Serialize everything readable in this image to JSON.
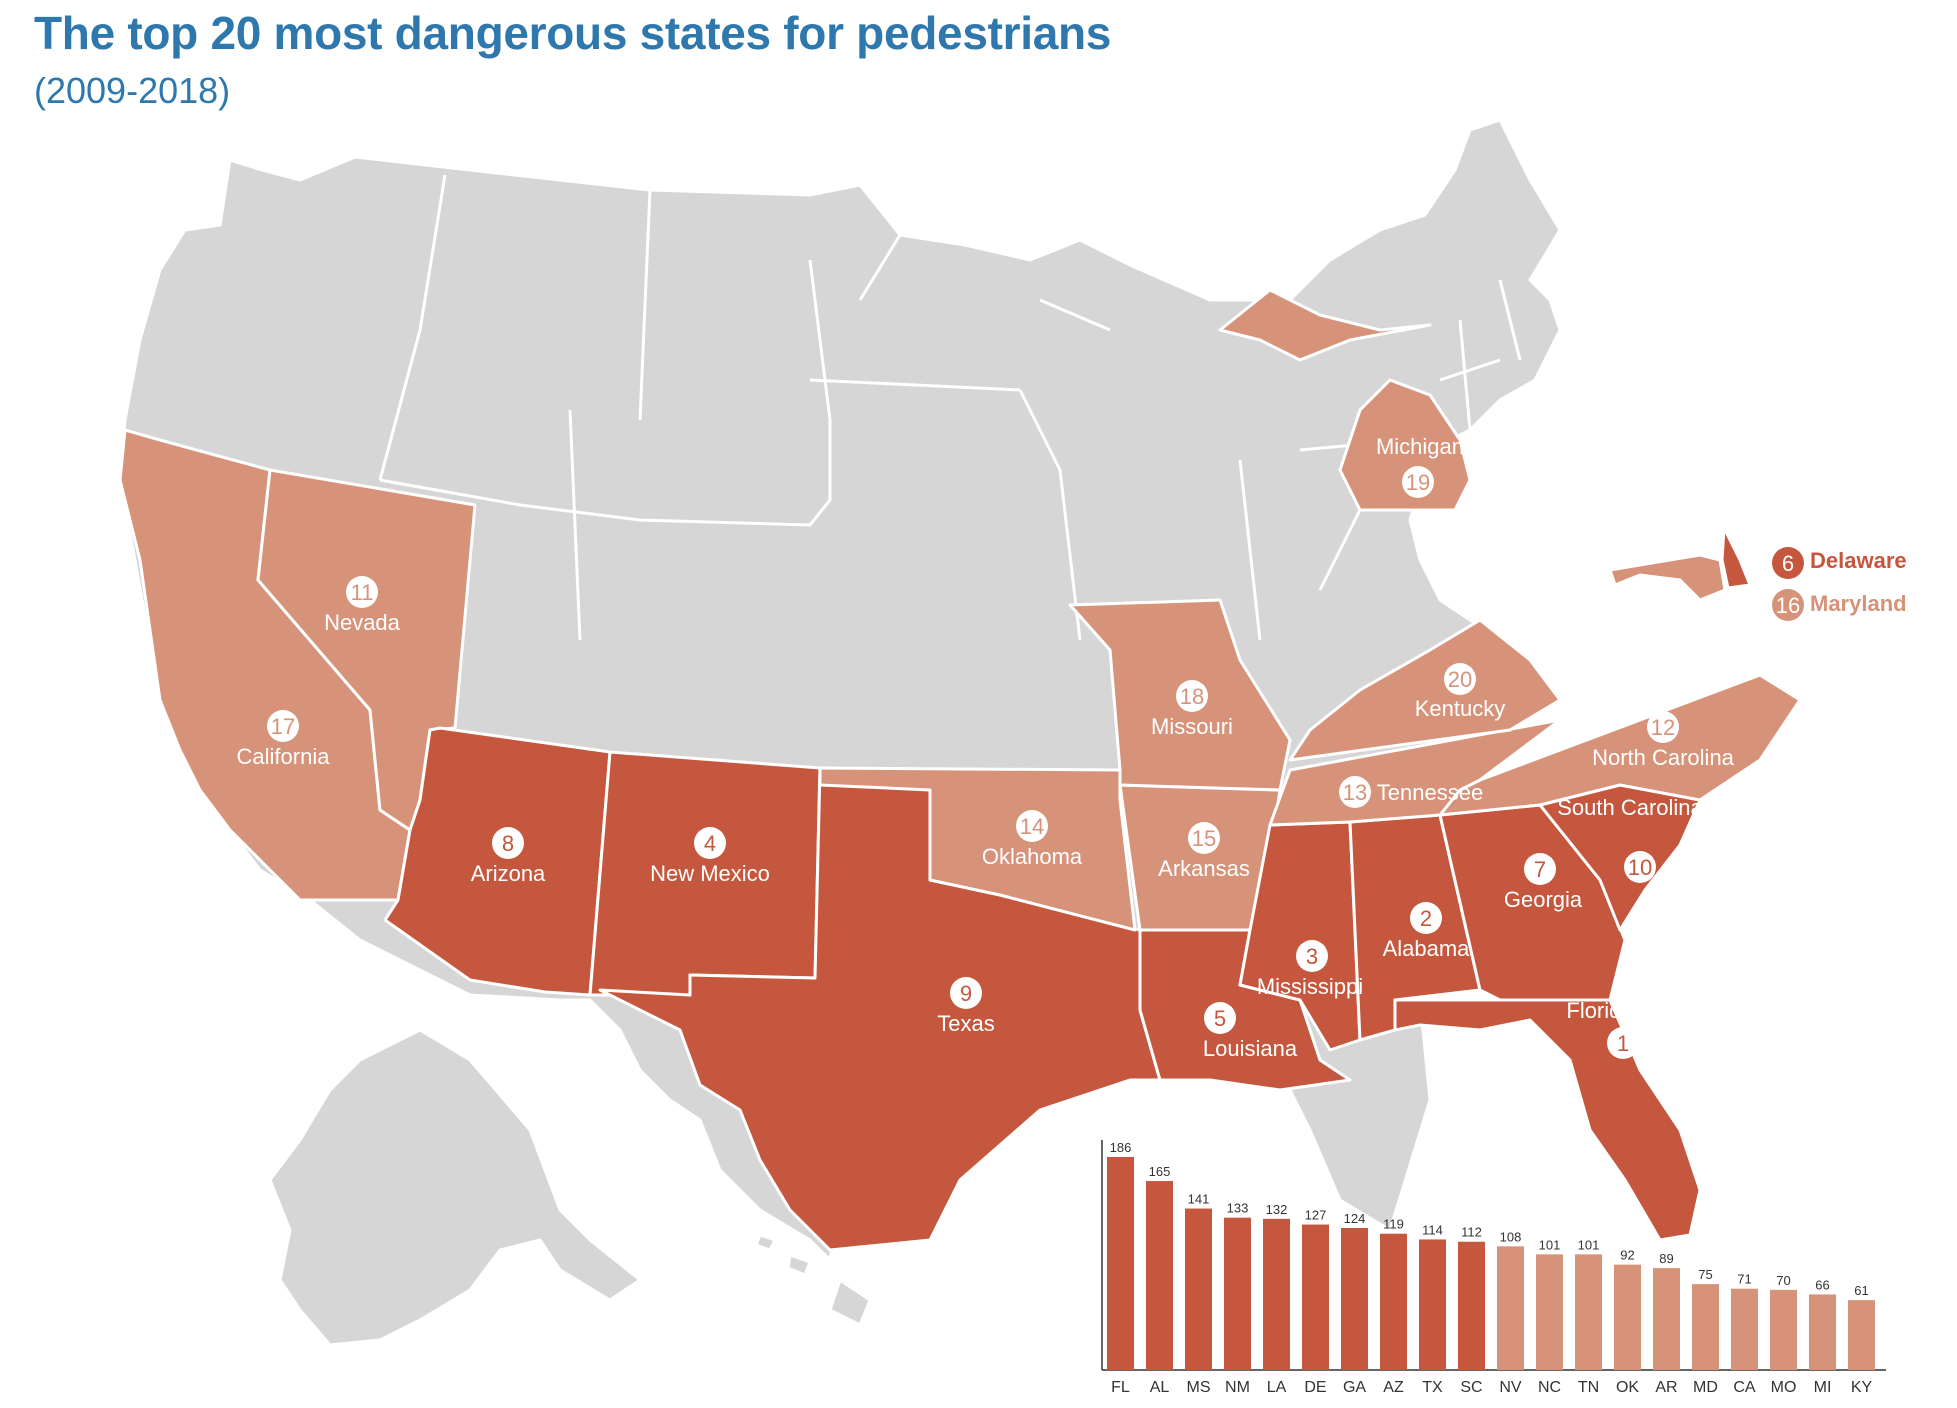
{
  "title": "The top 20 most dangerous states for pedestrians",
  "subtitle": "(2009-2018)",
  "colors": {
    "top_tier": "#c4573d",
    "second_tier": "#d6937a",
    "other": "#d6d6d6",
    "circle_fill": "#ffffff",
    "label_text": "#ffffff"
  },
  "states": [
    {
      "name": "Florida",
      "rank": "1",
      "tier": "top"
    },
    {
      "name": "Alabama",
      "rank": "2",
      "tier": "top"
    },
    {
      "name": "Mississippi",
      "rank": "3",
      "tier": "top"
    },
    {
      "name": "New Mexico",
      "rank": "4",
      "tier": "top"
    },
    {
      "name": "Louisiana",
      "rank": "5",
      "tier": "top"
    },
    {
      "name": "Delaware",
      "rank": "6",
      "tier": "top"
    },
    {
      "name": "Georgia",
      "rank": "7",
      "tier": "top"
    },
    {
      "name": "Arizona",
      "rank": "8",
      "tier": "top"
    },
    {
      "name": "Texas",
      "rank": "9",
      "tier": "top"
    },
    {
      "name": "South Carolina",
      "rank": "10",
      "tier": "top"
    },
    {
      "name": "Nevada",
      "rank": "11",
      "tier": "second"
    },
    {
      "name": "North Carolina",
      "rank": "12",
      "tier": "second"
    },
    {
      "name": "Tennessee",
      "rank": "13",
      "tier": "second"
    },
    {
      "name": "Oklahoma",
      "rank": "14",
      "tier": "second"
    },
    {
      "name": "Arkansas",
      "rank": "15",
      "tier": "second"
    },
    {
      "name": "Maryland",
      "rank": "16",
      "tier": "second"
    },
    {
      "name": "California",
      "rank": "17",
      "tier": "second"
    },
    {
      "name": "Missouri",
      "rank": "18",
      "tier": "second"
    },
    {
      "name": "Michigan",
      "rank": "19",
      "tier": "second"
    },
    {
      "name": "Kentucky",
      "rank": "20",
      "tier": "second"
    }
  ],
  "chart_data": {
    "type": "bar",
    "categories": [
      "FL",
      "AL",
      "MS",
      "NM",
      "LA",
      "DE",
      "GA",
      "AZ",
      "TX",
      "SC",
      "NV",
      "NC",
      "TN",
      "OK",
      "AR",
      "MD",
      "CA",
      "MO",
      "MI",
      "KY"
    ],
    "values": [
      186,
      165,
      141,
      133,
      132,
      127,
      124,
      119,
      114,
      112,
      108,
      101,
      101,
      92,
      89,
      75,
      71,
      70,
      66,
      61
    ],
    "tiers": [
      "top",
      "top",
      "top",
      "top",
      "top",
      "top",
      "top",
      "top",
      "top",
      "top",
      "second",
      "second",
      "second",
      "second",
      "second",
      "second",
      "second",
      "second",
      "second",
      "second"
    ],
    "ylim": [
      0,
      186
    ],
    "grid": false,
    "title": "",
    "xlabel": "",
    "ylabel": ""
  }
}
